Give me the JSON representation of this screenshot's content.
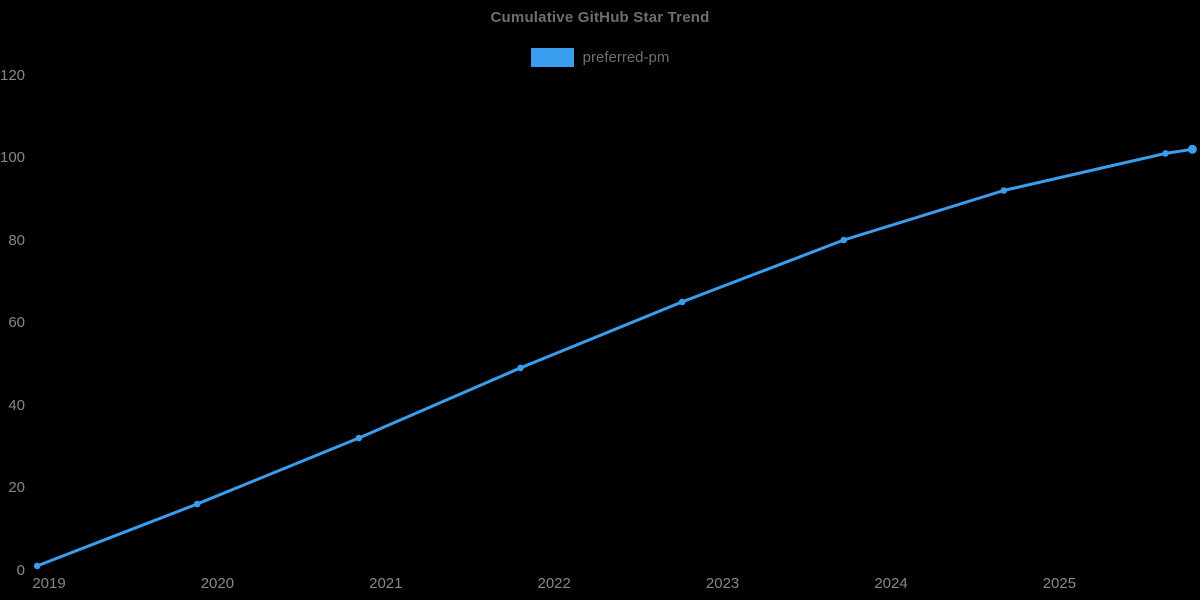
{
  "chart_data": {
    "type": "line",
    "title": "Cumulative GitHub Star Trend",
    "xlabel": "",
    "ylabel": "",
    "background_color": "#000000",
    "title_color": "#6e6e6e",
    "tick_color": "#878787",
    "grid": "off",
    "legend": {
      "position": "top-center",
      "entries": [
        {
          "label": "preferred-pm",
          "color": "#3a9ded"
        }
      ]
    },
    "x_ticks": [
      "2019",
      "2020",
      "2021",
      "2022",
      "2023",
      "2024",
      "2025"
    ],
    "y_ticks": [
      0,
      20,
      40,
      60,
      80,
      100,
      120
    ],
    "xlim": [
      2018.93,
      2025.83
    ],
    "ylim": [
      0,
      138
    ],
    "series": [
      {
        "name": "preferred-pm",
        "color": "#3a9ded",
        "line_width": 3,
        "marker": "circle",
        "points": [
          {
            "x": 2018.93,
            "y": 1
          },
          {
            "x": 2019.88,
            "y": 16
          },
          {
            "x": 2020.84,
            "y": 32
          },
          {
            "x": 2021.8,
            "y": 49
          },
          {
            "x": 2022.76,
            "y": 65
          },
          {
            "x": 2023.72,
            "y": 80
          },
          {
            "x": 2024.67,
            "y": 92
          },
          {
            "x": 2025.63,
            "y": 101
          },
          {
            "x": 2025.79,
            "y": 102
          }
        ]
      }
    ]
  }
}
